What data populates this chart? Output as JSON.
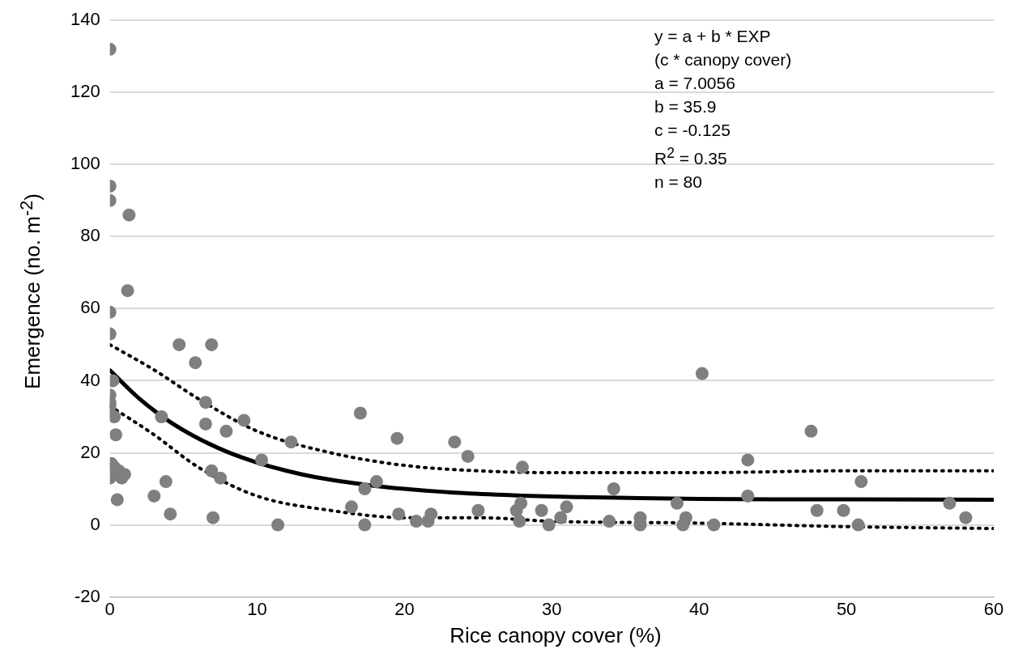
{
  "chart_data": {
    "type": "scatter",
    "xlabel": "Rice canopy cover (%)",
    "ylabel": "Emergence (no. m$^{-2}$)",
    "xlim": [
      0,
      60
    ],
    "xticks": [
      0,
      10,
      20,
      30,
      40,
      50,
      60
    ],
    "ylim": [
      -20,
      140
    ],
    "yticks": [
      -20,
      0,
      20,
      40,
      60,
      80,
      100,
      120,
      140
    ],
    "grid": "y",
    "legend": false,
    "marker": "circle",
    "annotations": [
      "y = a + b * EXP",
      "(c * canopy cover)",
      "a = 7.0056",
      "b = 35.9",
      "c = -0.125",
      "R$^{2}$ = 0.35",
      "n = 80"
    ],
    "series": [
      {
        "type": "scatter",
        "color": "#7f7f7f",
        "x": [
          0,
          0,
          0,
          1.3,
          1.2,
          0,
          0,
          4.7,
          6.9,
          5.8,
          0.2,
          0,
          0,
          0,
          0,
          0.3,
          6.5,
          6.5,
          3.5,
          9.1,
          7.9,
          0.4,
          12.3,
          10.3,
          3.8,
          7.5,
          6.9,
          0.1,
          0.3,
          0.6,
          0.8,
          1,
          0,
          0.5,
          3,
          4.1,
          7,
          11.4,
          17,
          19.5,
          23.4,
          24.3,
          16.4,
          17.3,
          18.1,
          17.3,
          19.6,
          20.8,
          21.6,
          21.8,
          25,
          28,
          27.6,
          27.9,
          27.8,
          29.3,
          29.8,
          30.6,
          31,
          34.2,
          33.9,
          36,
          36,
          38.5,
          39.1,
          38.9,
          40.2,
          41,
          43.3,
          43.3,
          47.6,
          48,
          49.8,
          50.8,
          51,
          57,
          58.1
        ],
        "values": [
          132,
          94,
          90,
          86,
          65,
          59,
          53,
          50,
          50,
          45,
          40,
          36,
          34,
          33,
          31,
          30,
          34,
          28,
          30,
          29,
          26,
          25,
          23,
          18,
          12,
          13,
          15,
          17,
          16,
          15,
          13,
          14,
          13,
          7,
          8,
          3,
          2,
          0,
          31,
          24,
          23,
          19,
          5,
          10,
          12,
          0,
          3,
          1,
          1,
          3,
          4,
          16,
          4,
          6,
          1,
          4,
          0,
          2,
          5,
          10,
          1,
          2,
          0,
          6,
          2,
          0,
          42,
          0,
          18,
          8,
          26,
          4,
          4,
          0,
          12,
          6,
          2
        ]
      },
      {
        "type": "line",
        "color": "#000000",
        "line_style": "solid",
        "marker": "none",
        "x": [
          0,
          2,
          4,
          6,
          8,
          10,
          12,
          14,
          16,
          18,
          20,
          24,
          28,
          32,
          36,
          40,
          45,
          50,
          60
        ],
        "values": [
          42.9,
          35.0,
          28.8,
          24.0,
          20.2,
          17.3,
          15.0,
          13.2,
          11.9,
          10.8,
          10.0,
          8.8,
          8.1,
          7.7,
          7.4,
          7.2,
          7.1,
          7.1,
          7.0
        ]
      },
      {
        "type": "line",
        "color": "#000000",
        "line_style": "dotted",
        "marker": "none",
        "x": [
          0,
          3,
          6,
          10,
          15,
          20,
          25,
          30,
          40,
          50,
          60
        ],
        "values": [
          50,
          43,
          35,
          26,
          20,
          16.5,
          15,
          14.5,
          14.5,
          15,
          15
        ]
      },
      {
        "type": "line",
        "color": "#000000",
        "line_style": "dotted",
        "marker": "none",
        "x": [
          0,
          3,
          6,
          10,
          15,
          20,
          25,
          30,
          40,
          50,
          60
        ],
        "values": [
          33,
          25,
          16,
          8,
          4,
          2,
          2,
          1,
          0.5,
          -0.5,
          -1
        ]
      }
    ]
  }
}
